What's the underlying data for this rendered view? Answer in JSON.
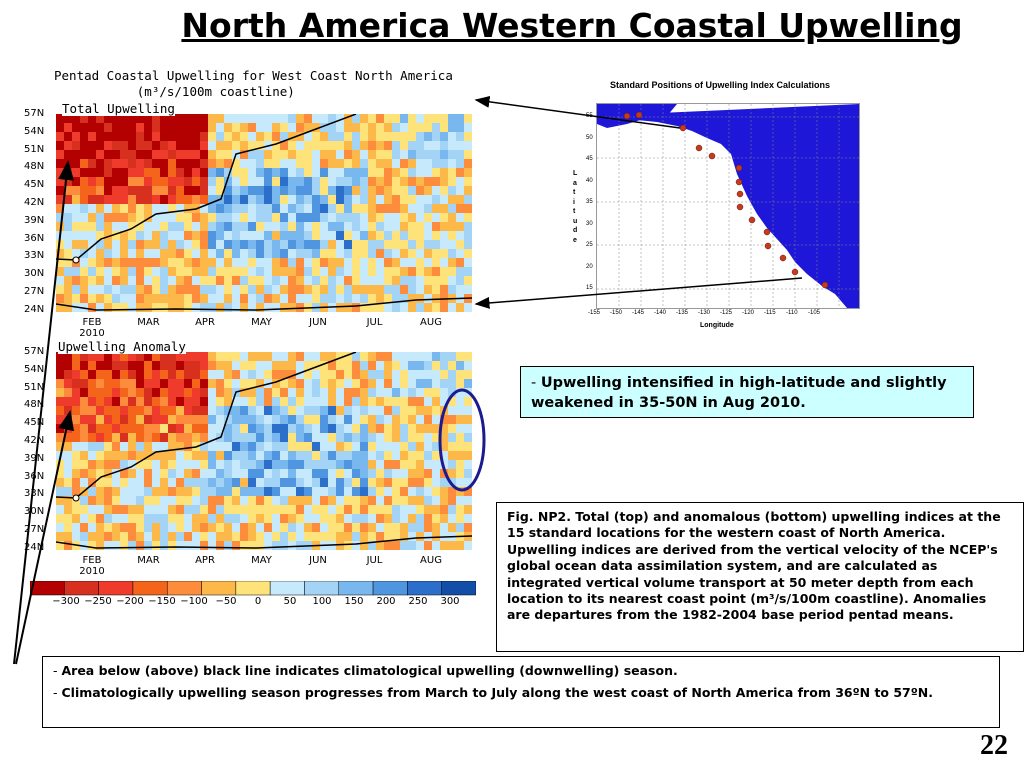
{
  "slide": {
    "title": "North America Western Coastal Upwelling",
    "page_number": "22"
  },
  "plot": {
    "title_line1": "Pentad Coastal Upwelling for West Coast North America",
    "title_line2": "           (m³/s/100m coastline)",
    "top_label": "Total Upwelling",
    "bottom_label": "Upwelling Anomaly"
  },
  "chart_data": [
    {
      "type": "heatmap",
      "title": "Total Upwelling",
      "x_months": [
        "FEB",
        "MAR",
        "APR",
        "MAY",
        "JUN",
        "JUL",
        "AUG"
      ],
      "x_year": "2010",
      "y_latitudes": [
        "57N",
        "54N",
        "51N",
        "48N",
        "45N",
        "42N",
        "39N",
        "36N",
        "33N",
        "30N",
        "27N",
        "24N"
      ],
      "colorbar": {
        "ticks": [
          "−300",
          "−250",
          "−200",
          "−150",
          "−100",
          "−50",
          "0",
          "50",
          "100",
          "150",
          "200",
          "250",
          "300"
        ],
        "colors": [
          "#b30000",
          "#d7301f",
          "#ef3b2c",
          "#f4641b",
          "#fd8d3c",
          "#fdb84a",
          "#fee27a",
          "#c6e9fb",
          "#a3d4f5",
          "#79b8ee",
          "#4f95e0",
          "#2c6fcb",
          "#124ea8"
        ]
      },
      "note": "0"
    },
    {
      "type": "heatmap",
      "title": "Upwelling Anomaly",
      "x_months": [
        "FEB",
        "MAR",
        "APR",
        "MAY",
        "JUN",
        "JUL",
        "AUG"
      ],
      "x_year": "2010",
      "y_latitudes": [
        "57N",
        "54N",
        "51N",
        "48N",
        "45N",
        "42N",
        "39N",
        "36N",
        "33N",
        "30N",
        "27N",
        "24N"
      ],
      "note": "0"
    }
  ],
  "map": {
    "title": "Standard Positions of Upwelling Index Calculations",
    "xlabel": "Longitude",
    "ylabel_letters": [
      "L",
      "a",
      "t",
      "i",
      "t",
      "u",
      "d",
      "e"
    ],
    "lon_ticks": [
      "-155",
      "-150",
      "-145",
      "-140",
      "-135",
      "-130",
      "-125",
      "-120",
      "-115",
      "-110",
      "-105"
    ],
    "lat_ticks": [
      "55",
      "50",
      "45",
      "40",
      "35",
      "30",
      "25",
      "20",
      "15"
    ]
  },
  "boxes": {
    "highlight": "Upwelling intensified in high-latitude and slightly weakened in 35-50N in Aug 2010.",
    "caption_line": "Fig. NP2. Total (top) and anomalous (bottom) upwelling indices at the 15 standard locations for the western coast of North America. Upwelling indices are derived from the vertical velocity of the NCEP's global ocean data assimilation system, and are calculated as integrated vertical volume transport at 50 meter depth from each location to its nearest coast point (m³/s/100m coastline). Anomalies are departures from the 1982-2004 base period pentad means.",
    "bullet1": "Area below (above) black line indicates climatological upwelling (downwelling) season.",
    "bullet2": "Climatologically upwelling season progresses from March to July along the west coast of North America from 36ºN to 57ºN.",
    "dash": "- "
  }
}
